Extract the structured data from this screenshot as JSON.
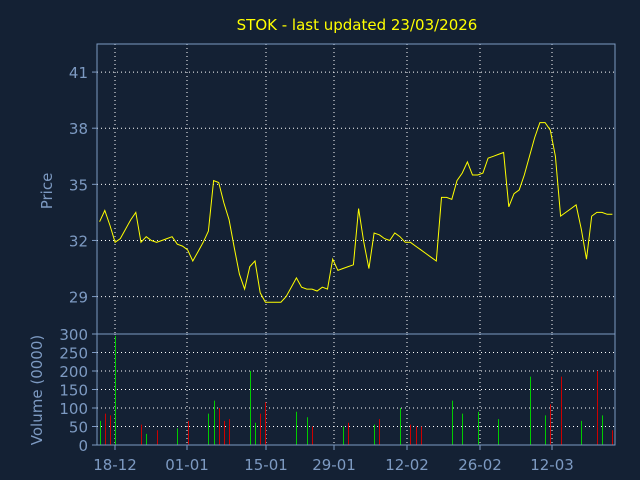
{
  "chart_data": {
    "type": "line",
    "title": "STOK - last updated 23/03/2026",
    "colors": {
      "background": "#142134",
      "frame": "#7d9ac2",
      "grid": "#ffffff",
      "price_line": "#ffff00",
      "volume_up": "#00cc00",
      "volume_down": "#cc0000"
    },
    "grid": true,
    "x_tick_labels": [
      "18-12",
      "01-01",
      "15-01",
      "29-01",
      "12-02",
      "26-02",
      "12-03"
    ],
    "price_panel": {
      "ylabel": "Price",
      "ylim": [
        27,
        42.5
      ],
      "yticks": [
        29,
        32,
        35,
        38,
        41
      ],
      "series": [
        {
          "values": [
            33.0,
            33.6,
            32.8,
            31.9,
            32.1,
            32.6,
            33.1,
            33.5,
            31.9,
            32.2,
            32.0,
            31.9,
            32.0,
            32.1,
            32.2,
            31.8,
            31.7,
            31.5,
            30.9,
            31.4,
            31.9,
            32.5,
            35.2,
            35.1,
            34.0,
            33.1,
            31.6,
            30.2,
            29.4,
            30.6,
            30.9,
            29.2,
            28.7,
            28.7,
            28.7,
            28.7,
            29.0,
            29.5,
            30.0,
            29.5,
            29.4,
            29.4,
            29.3,
            29.5,
            29.4,
            31.0,
            30.4,
            30.5,
            30.6,
            30.7,
            33.7,
            31.9,
            30.5,
            32.4,
            32.3,
            32.1,
            32.0,
            32.4,
            32.2,
            31.9,
            31.9,
            31.7,
            31.5,
            31.3,
            31.1,
            30.9,
            34.3,
            34.3,
            34.2,
            35.2,
            35.6,
            36.2,
            35.5,
            35.5,
            35.6,
            36.4,
            36.5,
            36.6,
            36.7,
            33.8,
            34.5,
            34.7,
            35.5,
            36.5,
            37.5,
            38.3,
            38.3,
            37.9,
            36.5,
            33.3,
            33.5,
            33.7,
            33.9,
            32.6,
            31.0,
            33.3,
            33.5,
            33.5,
            33.4,
            33.4
          ]
        }
      ]
    },
    "volume_panel": {
      "ylabel": "Volume (0000)",
      "ylim": [
        0,
        300
      ],
      "yticks": [
        0,
        50,
        100,
        150,
        200,
        250,
        300
      ],
      "series": [
        {
          "name": "up",
          "values": [
            65,
            0,
            0,
            295,
            0,
            0,
            0,
            0,
            0,
            30,
            0,
            0,
            0,
            0,
            0,
            45,
            0,
            0,
            0,
            0,
            0,
            85,
            120,
            0,
            0,
            0,
            0,
            0,
            0,
            200,
            60,
            0,
            0,
            0,
            0,
            0,
            0,
            0,
            90,
            0,
            75,
            0,
            0,
            0,
            0,
            0,
            0,
            50,
            0,
            0,
            0,
            0,
            0,
            55,
            0,
            0,
            0,
            0,
            100,
            0,
            0,
            0,
            0,
            0,
            0,
            0,
            0,
            0,
            120,
            0,
            85,
            0,
            0,
            90,
            0,
            0,
            0,
            70,
            0,
            0,
            0,
            0,
            0,
            185,
            0,
            0,
            80,
            0,
            0,
            0,
            0,
            0,
            0,
            65,
            0,
            0,
            0,
            80,
            0,
            0
          ]
        },
        {
          "name": "down",
          "values": [
            0,
            85,
            80,
            0,
            0,
            0,
            0,
            0,
            55,
            0,
            0,
            40,
            0,
            0,
            0,
            0,
            0,
            65,
            0,
            0,
            0,
            0,
            0,
            100,
            65,
            70,
            0,
            0,
            0,
            0,
            0,
            85,
            115,
            0,
            0,
            0,
            0,
            0,
            0,
            0,
            0,
            50,
            0,
            0,
            0,
            0,
            0,
            0,
            60,
            0,
            0,
            0,
            0,
            0,
            70,
            0,
            0,
            0,
            0,
            0,
            55,
            50,
            50,
            0,
            0,
            0,
            0,
            0,
            0,
            0,
            0,
            0,
            0,
            0,
            0,
            0,
            0,
            0,
            0,
            0,
            0,
            0,
            0,
            0,
            0,
            0,
            0,
            110,
            0,
            185,
            0,
            0,
            0,
            0,
            0,
            0,
            200,
            0,
            0,
            40
          ]
        }
      ]
    }
  }
}
